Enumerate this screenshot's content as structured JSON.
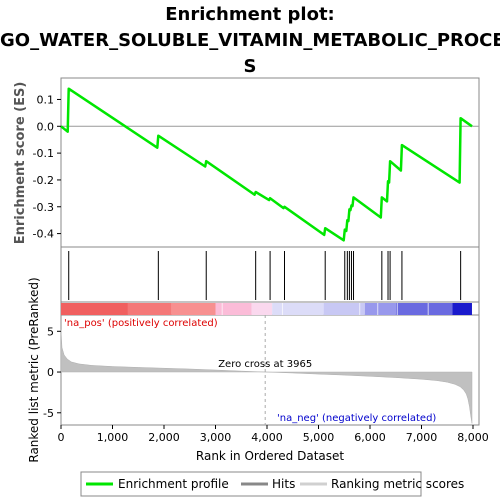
{
  "title_lines": [
    "Enrichment plot:",
    "GO_WATER_SOLUBLE_VITAMIN_METABOLIC_PROCES",
    "S"
  ],
  "chart_data": {
    "type": "line",
    "ylabel_es": "Enrichment score (ES)",
    "ylabel_metric": "Ranked list metric (PreRanked)",
    "xlabel": "Rank in Ordered Dataset",
    "xlim": [
      0,
      8000
    ],
    "es_ylim": [
      -0.45,
      0.18
    ],
    "metric_ylim": [
      -6.5,
      7
    ],
    "es_yticks": [
      0.1,
      0.0,
      -0.1,
      -0.2,
      -0.3,
      -0.4
    ],
    "es_ytick_labels": [
      "0.1",
      "0.0",
      "-0.1",
      "-0.2",
      "-0.3",
      "-0.4"
    ],
    "metric_yticks": [
      5,
      0,
      -5
    ],
    "metric_ytick_labels": [
      "5",
      "0",
      "-5"
    ],
    "xticks": [
      0,
      1000,
      2000,
      3000,
      4000,
      5000,
      6000,
      7000,
      8000
    ],
    "xtick_labels": [
      "0",
      "1,000",
      "2,000",
      "3,000",
      "4,000",
      "5,000",
      "6,000",
      "7,000",
      "8,000"
    ],
    "hits": [
      150,
      1890,
      2820,
      3780,
      4060,
      4340,
      5130,
      5510,
      5560,
      5600,
      5640,
      5680,
      6230,
      6350,
      6390,
      6620,
      7760
    ],
    "es_profile": {
      "x": [
        0,
        130,
        150,
        1870,
        1890,
        2800,
        2820,
        3760,
        3780,
        4040,
        4060,
        4320,
        4340,
        5110,
        5130,
        5490,
        5510,
        5540,
        5560,
        5580,
        5600,
        5620,
        5640,
        5660,
        5680,
        6210,
        6230,
        6330,
        6350,
        6370,
        6390,
        6600,
        6620,
        7740,
        7760,
        7980
      ],
      "y": [
        0.0,
        -0.02,
        0.14,
        -0.08,
        -0.035,
        -0.15,
        -0.13,
        -0.255,
        -0.245,
        -0.275,
        -0.268,
        -0.305,
        -0.3,
        -0.405,
        -0.38,
        -0.425,
        -0.385,
        -0.39,
        -0.35,
        -0.353,
        -0.31,
        -0.313,
        -0.295,
        -0.297,
        -0.265,
        -0.34,
        -0.265,
        -0.28,
        -0.205,
        -0.21,
        -0.13,
        -0.165,
        -0.07,
        -0.21,
        0.03,
        0.0
      ]
    },
    "metric_profile": {
      "x": [
        0,
        20,
        60,
        120,
        200,
        350,
        600,
        1000,
        1500,
        2000,
        2500,
        3000,
        3500,
        3965,
        4500,
        5000,
        5500,
        6000,
        6500,
        7000,
        7300,
        7500,
        7650,
        7750,
        7820,
        7870,
        7900,
        7930,
        7960,
        7980
      ],
      "y": [
        5.2,
        3.0,
        2.1,
        1.6,
        1.25,
        1.0,
        0.82,
        0.68,
        0.57,
        0.47,
        0.37,
        0.25,
        0.12,
        0.0,
        -0.12,
        -0.25,
        -0.38,
        -0.52,
        -0.68,
        -0.88,
        -1.05,
        -1.25,
        -1.5,
        -1.8,
        -2.2,
        -2.7,
        -3.3,
        -4.2,
        -5.5,
        -6.3
      ]
    },
    "zero_cross_label": "Zero cross at 3965",
    "zero_cross": 3965,
    "pos_label": "'na_pos' (positively correlated)",
    "neg_label": "'na_neg' (negatively correlated)",
    "colors": {
      "es_line": "#00e600",
      "hit": "#000000",
      "metric_fill": "#c0c0c0",
      "pos_label": "#dd0000",
      "neg_label": "#0000cc",
      "zero_line": "#aaaaaa"
    },
    "gradient_bar": [
      {
        "from": 0,
        "to": 1300,
        "color": "#f06060"
      },
      {
        "from": 1300,
        "to": 2150,
        "color": "#f47878"
      },
      {
        "from": 2150,
        "to": 3000,
        "color": "#f79090"
      },
      {
        "from": 3000,
        "to": 3700,
        "color": "#fbbcd8"
      },
      {
        "from": 3700,
        "to": 4100,
        "color": "#fad8ee"
      },
      {
        "from": 4100,
        "to": 5100,
        "color": "#dcdcf8"
      },
      {
        "from": 5100,
        "to": 5900,
        "color": "#c8c8f4"
      },
      {
        "from": 5900,
        "to": 6500,
        "color": "#9898ec"
      },
      {
        "from": 6500,
        "to": 7600,
        "color": "#6a6ae0"
      },
      {
        "from": 7600,
        "to": 7980,
        "color": "#1a1acc"
      }
    ],
    "legend": [
      {
        "label": "Enrichment profile",
        "kind": "es"
      },
      {
        "label": "Hits",
        "kind": "hits"
      },
      {
        "label": "Ranking metric scores",
        "kind": "metric"
      }
    ]
  }
}
